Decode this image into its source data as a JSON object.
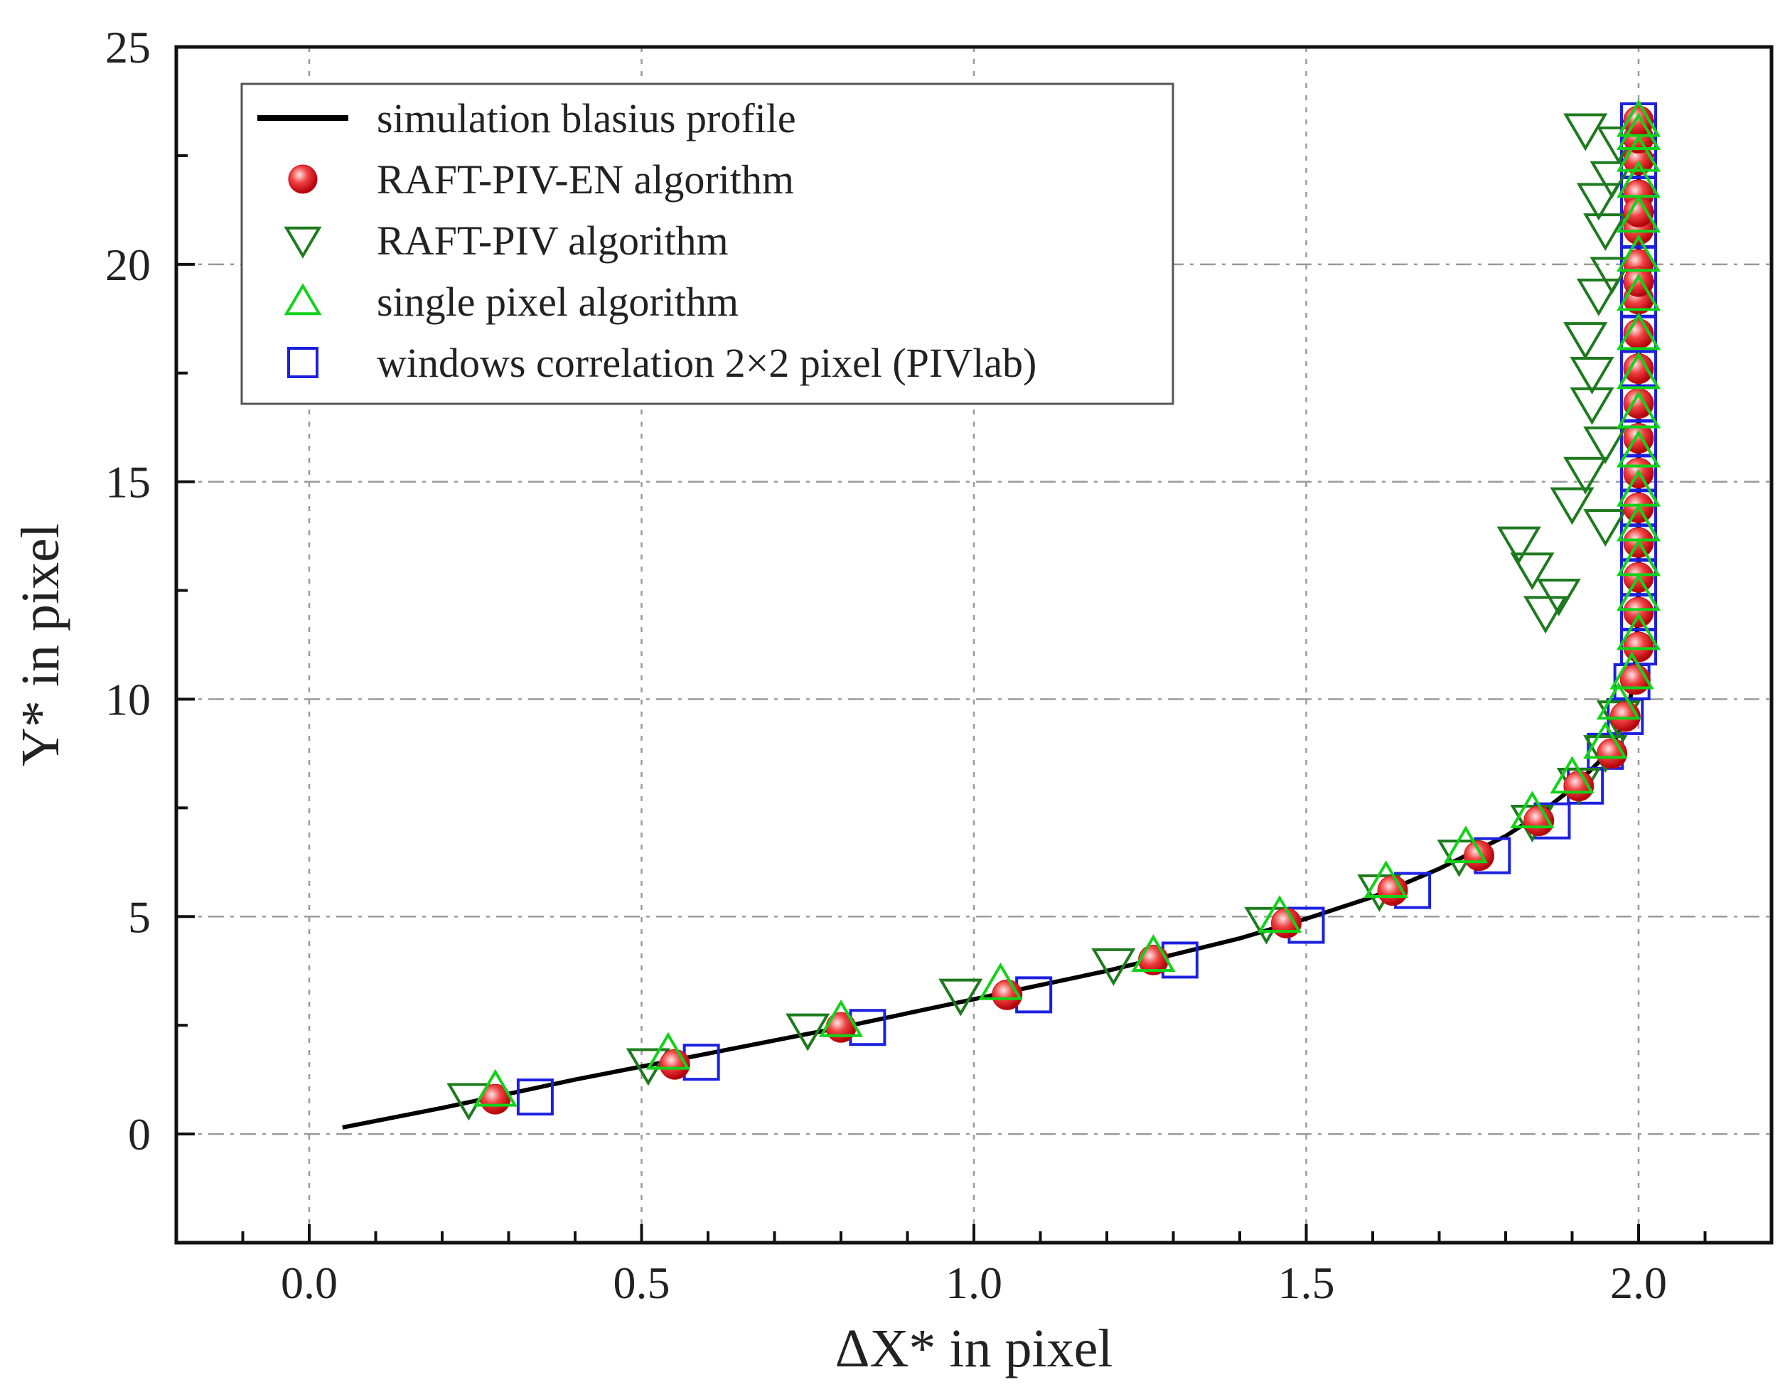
{
  "chart_data": {
    "type": "scatter",
    "xlabel": "ΔX* in pixel",
    "ylabel": "Y* in pixel",
    "xlim": [
      -0.2,
      2.2
    ],
    "ylim": [
      -2.5,
      25
    ],
    "xticks": [
      0.0,
      0.5,
      1.0,
      1.5,
      2.0
    ],
    "xtick_labels": [
      "0.0",
      "0.5",
      "1.0",
      "1.5",
      "2.0"
    ],
    "yticks": [
      0,
      5,
      10,
      15,
      20,
      25
    ],
    "ytick_labels": [
      "0",
      "5",
      "10",
      "15",
      "20",
      "25"
    ],
    "grid": true,
    "legend_position": "top-left",
    "series": [
      {
        "name": "simulation blasius profile",
        "style": "line",
        "color": "#000000",
        "x": [
          0.05,
          0.2,
          0.4,
          0.6,
          0.8,
          1.0,
          1.2,
          1.4,
          1.5,
          1.6,
          1.7,
          1.8,
          1.85,
          1.9,
          1.94,
          1.97,
          1.985,
          1.993,
          1.997,
          2.0,
          2.0
        ],
        "y": [
          0.15,
          0.6,
          1.25,
          1.85,
          2.45,
          3.1,
          3.75,
          4.5,
          4.95,
          5.45,
          6.1,
          6.85,
          7.35,
          7.95,
          8.55,
          9.2,
          9.8,
          10.5,
          11.3,
          12.5,
          23.3
        ]
      },
      {
        "name": "RAFT-PIV-EN algorithm",
        "style": "circle",
        "color": "#e8141c",
        "x": [
          0.28,
          0.55,
          0.8,
          1.05,
          1.27,
          1.47,
          1.63,
          1.76,
          1.85,
          1.91,
          1.96,
          1.98,
          1.995,
          2.0,
          2.0,
          2.0,
          2.0,
          2.0,
          2.0,
          2.0,
          2.0,
          2.0,
          2.0,
          2.0,
          2.0,
          2.0,
          2.0,
          2.0,
          2.0,
          2.0,
          2.0,
          2.0
        ],
        "y": [
          0.8,
          1.6,
          2.45,
          3.2,
          4.0,
          4.85,
          5.6,
          6.4,
          7.2,
          8.0,
          8.75,
          9.6,
          10.45,
          11.2,
          12.0,
          12.8,
          13.6,
          14.4,
          15.2,
          16.0,
          16.8,
          17.6,
          18.4,
          19.2,
          20.0,
          20.8,
          21.6,
          22.4,
          22.9,
          23.3,
          19.6,
          21.2
        ]
      },
      {
        "name": "RAFT-PIV algorithm",
        "style": "triangle-down",
        "color": "#1e7a1e",
        "x": [
          0.24,
          0.51,
          0.75,
          0.98,
          1.21,
          1.44,
          1.61,
          1.73,
          1.84,
          1.91,
          1.95,
          1.97,
          1.86,
          1.88,
          1.84,
          1.82,
          1.9,
          1.92,
          1.95,
          1.93,
          1.92,
          1.94,
          1.96,
          1.95,
          1.94,
          1.96,
          1.97,
          1.92,
          1.93,
          1.95
        ],
        "y": [
          0.8,
          1.6,
          2.4,
          3.2,
          3.9,
          4.85,
          5.6,
          6.4,
          7.2,
          8.05,
          8.8,
          9.6,
          12.0,
          12.4,
          13.0,
          13.6,
          14.5,
          15.2,
          15.9,
          16.8,
          18.3,
          19.3,
          19.8,
          20.8,
          21.5,
          22.0,
          22.8,
          23.1,
          17.5,
          14.0
        ]
      },
      {
        "name": "single pixel algorithm",
        "style": "triangle-up",
        "color": "#12d21a",
        "x": [
          0.28,
          0.54,
          0.8,
          1.04,
          1.27,
          1.46,
          1.62,
          1.74,
          1.84,
          1.9,
          1.95,
          1.97,
          1.99,
          2.0,
          2.0,
          2.0,
          2.0,
          2.0,
          2.0,
          2.0,
          2.0,
          2.0,
          2.0,
          2.0,
          2.0,
          2.0,
          2.0,
          2.0,
          2.0
        ],
        "y": [
          1.0,
          1.85,
          2.6,
          3.45,
          4.1,
          5.0,
          5.8,
          6.6,
          7.4,
          8.2,
          9.0,
          9.9,
          10.6,
          11.5,
          12.4,
          13.2,
          14.0,
          14.8,
          15.7,
          16.6,
          17.5,
          18.4,
          19.3,
          20.2,
          21.1,
          21.9,
          22.5,
          23.0,
          23.3
        ]
      },
      {
        "name": "windows correlation 2×2 pixel (PIVlab)",
        "style": "square",
        "color": "#1c20e0",
        "x": [
          0.34,
          0.59,
          0.84,
          1.09,
          1.31,
          1.5,
          1.66,
          1.78,
          1.87,
          1.92,
          1.95,
          1.98,
          1.99,
          2.0,
          2.0,
          2.0,
          2.0,
          2.0,
          2.0,
          2.0,
          2.0,
          2.0,
          2.0,
          2.0,
          2.0,
          2.0,
          2.0,
          2.0,
          2.0,
          2.0,
          2.0
        ],
        "y": [
          0.85,
          1.65,
          2.45,
          3.2,
          4.0,
          4.8,
          5.6,
          6.4,
          7.2,
          8.0,
          8.8,
          9.6,
          10.4,
          11.2,
          12.0,
          12.8,
          13.6,
          14.4,
          15.2,
          16.0,
          16.8,
          17.6,
          18.4,
          19.2,
          20.0,
          20.8,
          21.6,
          22.4,
          22.9,
          23.3,
          22.0
        ]
      }
    ]
  }
}
